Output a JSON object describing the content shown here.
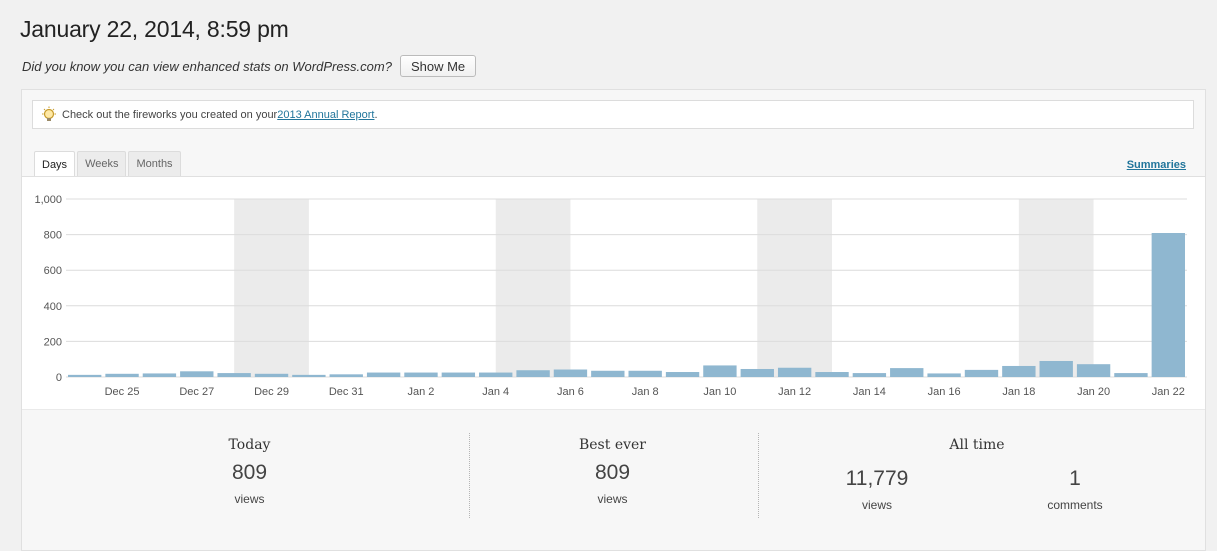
{
  "page": {
    "title": "January 22, 2014, 8:59 pm",
    "promo_text": "Did you know you can view enhanced stats on WordPress.com?",
    "show_me_label": "Show Me"
  },
  "notice": {
    "icon": "lightbulb-icon",
    "text_before": "Check out the fireworks you created on your ",
    "link_text": "2013 Annual Report",
    "text_after": "."
  },
  "tabs": [
    {
      "label": "Days",
      "active": true
    },
    {
      "label": "Weeks",
      "active": false
    },
    {
      "label": "Months",
      "active": false
    }
  ],
  "summaries_label": "Summaries",
  "colors": {
    "bar": "#8fb7d0",
    "weekend_band": "#ebebeb",
    "link": "#21759b"
  },
  "chart_data": {
    "type": "bar",
    "ylim": [
      0,
      1000
    ],
    "yticks": [
      0,
      200,
      400,
      600,
      800,
      1000
    ],
    "ytick_labels": [
      "0",
      "200",
      "400",
      "600",
      "800",
      "1,000"
    ],
    "categories": [
      "Dec 24",
      "Dec 25",
      "Dec 26",
      "Dec 27",
      "Dec 28",
      "Dec 29",
      "Dec 30",
      "Dec 31",
      "Jan 1",
      "Jan 2",
      "Jan 3",
      "Jan 4",
      "Jan 5",
      "Jan 6",
      "Jan 7",
      "Jan 8",
      "Jan 9",
      "Jan 10",
      "Jan 11",
      "Jan 12",
      "Jan 13",
      "Jan 14",
      "Jan 15",
      "Jan 16",
      "Jan 17",
      "Jan 18",
      "Jan 19",
      "Jan 20",
      "Jan 21",
      "Jan 22"
    ],
    "xtick_labels": [
      "",
      "Dec 25",
      "",
      "Dec 27",
      "",
      "Dec 29",
      "",
      "Dec 31",
      "",
      "Jan 2",
      "",
      "Jan 4",
      "",
      "Jan 6",
      "",
      "Jan 8",
      "",
      "Jan 10",
      "",
      "Jan 12",
      "",
      "Jan 14",
      "",
      "Jan 16",
      "",
      "Jan 18",
      "",
      "Jan 20",
      "",
      "Jan 22"
    ],
    "values": [
      12,
      18,
      20,
      32,
      22,
      18,
      12,
      15,
      25,
      25,
      25,
      25,
      38,
      42,
      35,
      35,
      28,
      65,
      45,
      52,
      28,
      22,
      50,
      20,
      40,
      62,
      90,
      72,
      22,
      809
    ],
    "weekend_bands": [
      [
        "Dec 28",
        "Dec 29"
      ],
      [
        "Jan 4",
        "Jan 5"
      ],
      [
        "Jan 11",
        "Jan 12"
      ],
      [
        "Jan 18",
        "Jan 19"
      ]
    ],
    "grid": true
  },
  "stats": {
    "today": {
      "heading": "Today",
      "views": "809",
      "views_label": "views"
    },
    "best_ever": {
      "heading": "Best ever",
      "views": "809",
      "views_label": "views"
    },
    "all_time": {
      "heading": "All time",
      "views": "11,779",
      "views_label": "views",
      "comments": "1",
      "comments_label": "comments"
    }
  }
}
